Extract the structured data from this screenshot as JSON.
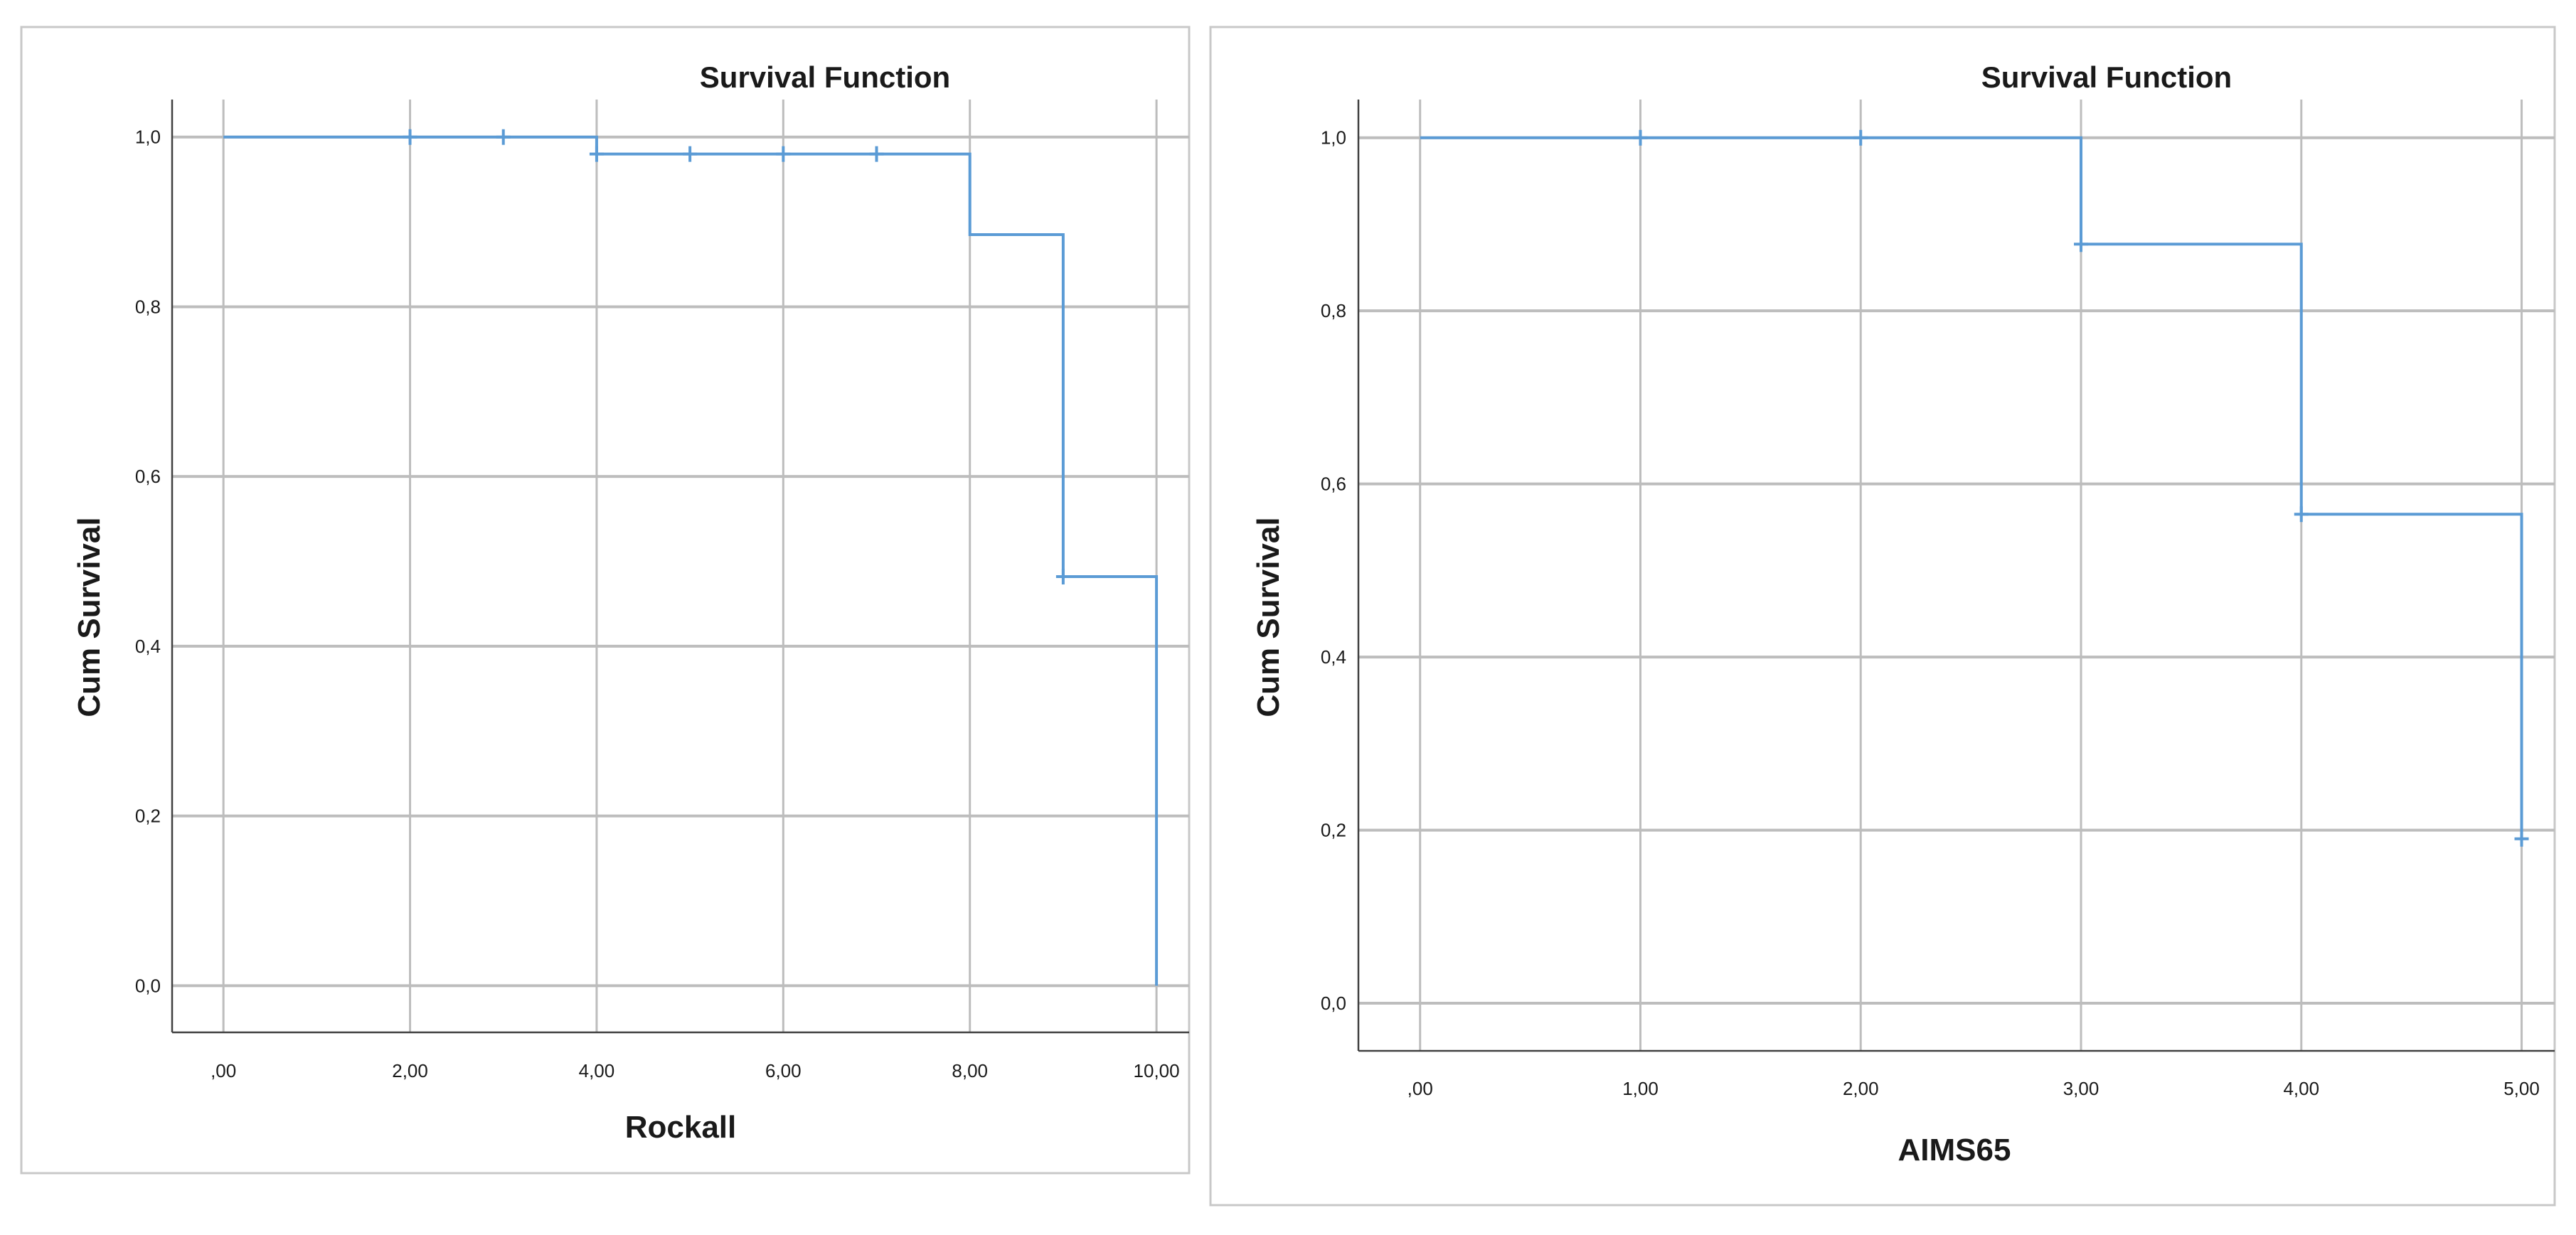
{
  "style": {
    "line_color": "#5b9bd5",
    "grid_color": "#bdbdbd",
    "frame_color": "#c8c8c8",
    "axis_color": "#404040",
    "text_color": "#1a1a1a"
  },
  "chart_data": [
    {
      "type": "line",
      "step": "post",
      "title": "Survival Function",
      "xlabel": "Rockall",
      "ylabel": "Cum Survival",
      "xlim": [
        -0.55,
        10.35
      ],
      "ylim": [
        -0.055,
        1.04
      ],
      "x_ticks": [
        0,
        2,
        4,
        6,
        8,
        10
      ],
      "x_tick_labels": [
        ",00",
        "2,00",
        "4,00",
        "6,00",
        "8,00",
        "10,00"
      ],
      "y_ticks": [
        0,
        0.2,
        0.4,
        0.6,
        0.8,
        1.0
      ],
      "y_tick_labels": [
        "0,0",
        "0,2",
        "0,4",
        "0,6",
        "0,8",
        "1,0"
      ],
      "grid": true,
      "series": [
        {
          "x": [
            0,
            4,
            8,
            9,
            10,
            10
          ],
          "y": [
            1.0,
            0.98,
            0.885,
            0.482,
            0.482,
            0.0
          ]
        }
      ],
      "censored": [
        {
          "x": 2,
          "y": 1.0
        },
        {
          "x": 3,
          "y": 1.0
        },
        {
          "x": 4,
          "y": 0.98
        },
        {
          "x": 5,
          "y": 0.98
        },
        {
          "x": 6,
          "y": 0.98
        },
        {
          "x": 7,
          "y": 0.98
        },
        {
          "x": 9,
          "y": 0.482
        }
      ]
    },
    {
      "type": "line",
      "step": "post",
      "title": "Survival Function",
      "xlabel": "AIMS65",
      "ylabel": "Cum Survival",
      "xlim": [
        -0.28,
        5.15
      ],
      "ylim": [
        -0.055,
        1.04
      ],
      "x_ticks": [
        0,
        1,
        2,
        3,
        4,
        5
      ],
      "x_tick_labels": [
        ",00",
        "1,00",
        "2,00",
        "3,00",
        "4,00",
        "5,00"
      ],
      "y_ticks": [
        0,
        0.2,
        0.4,
        0.6,
        0.8,
        1.0
      ],
      "y_tick_labels": [
        "0,0",
        "0,2",
        "0,4",
        "0,6",
        "0,8",
        "1,0"
      ],
      "grid": true,
      "series": [
        {
          "x": [
            0,
            3,
            4,
            5
          ],
          "y": [
            1.0,
            0.877,
            0.565,
            0.19
          ]
        }
      ],
      "censored": [
        {
          "x": 1,
          "y": 1.0
        },
        {
          "x": 2,
          "y": 1.0
        },
        {
          "x": 3,
          "y": 0.877
        },
        {
          "x": 4,
          "y": 0.565
        },
        {
          "x": 5,
          "y": 0.19
        }
      ]
    }
  ]
}
